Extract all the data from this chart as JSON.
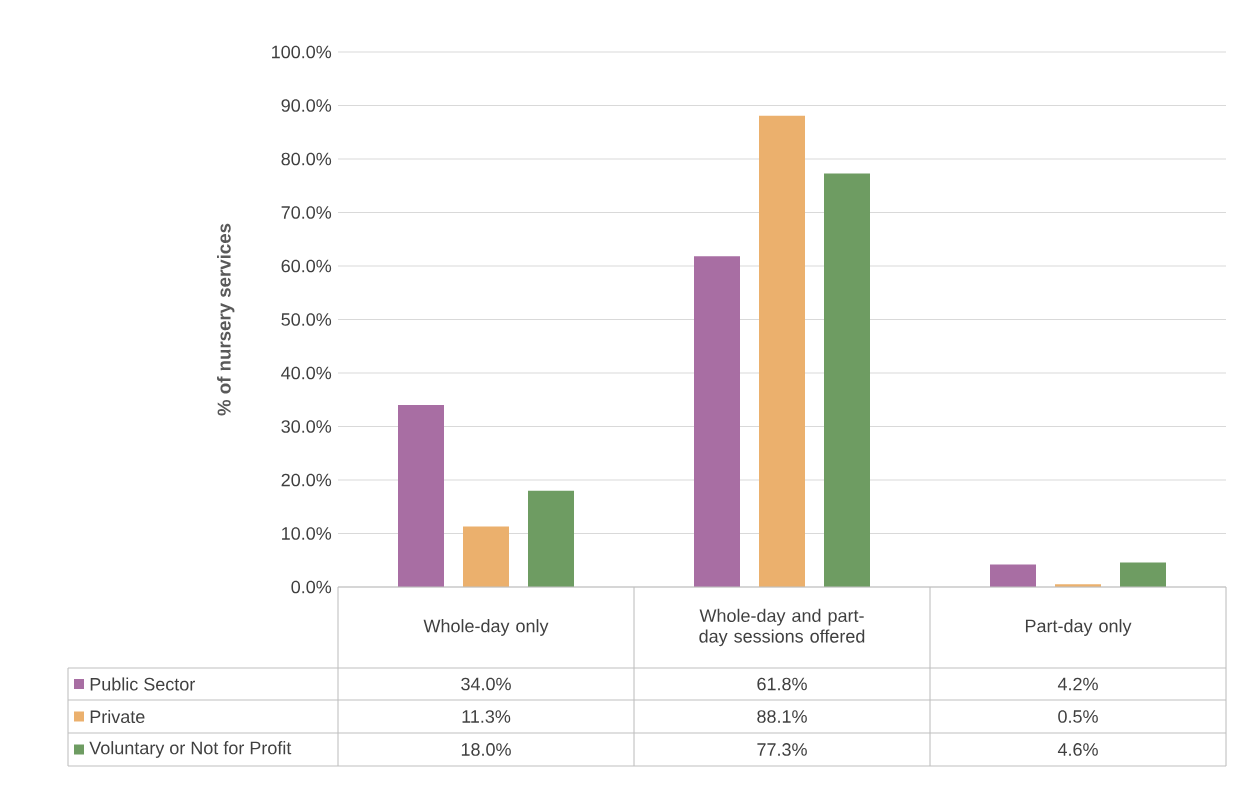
{
  "chart_data": {
    "type": "bar",
    "ylabel": "% of nursery services",
    "categories": [
      "Whole-day only",
      "Whole-day and part-day sessions offered",
      "Part-day only"
    ],
    "series": [
      {
        "name": "Public Sector",
        "color": "#a86ea3",
        "values": [
          34.0,
          61.8,
          4.2
        ],
        "value_labels": [
          "34.0%",
          "61.8%",
          "4.2%"
        ]
      },
      {
        "name": "Private",
        "color": "#ebb06d",
        "values": [
          11.3,
          88.1,
          0.5
        ],
        "value_labels": [
          "11.3%",
          "88.1%",
          "0.5%"
        ]
      },
      {
        "name": "Voluntary or Not for Profit",
        "color": "#6e9c62",
        "values": [
          18.0,
          77.3,
          4.6
        ],
        "value_labels": [
          "18.0%",
          "77.3%",
          "4.6%"
        ]
      }
    ],
    "ylim": [
      0,
      100
    ],
    "yticks": [
      {
        "value": 0,
        "label": "0.0%"
      },
      {
        "value": 10,
        "label": "10.0%"
      },
      {
        "value": 20,
        "label": "20.0%"
      },
      {
        "value": 30,
        "label": "30.0%"
      },
      {
        "value": 40,
        "label": "40.0%"
      },
      {
        "value": 50,
        "label": "50.0%"
      },
      {
        "value": 60,
        "label": "60.0%"
      },
      {
        "value": 70,
        "label": "70.0%"
      },
      {
        "value": 80,
        "label": "80.0%"
      },
      {
        "value": 90,
        "label": "90.0%"
      },
      {
        "value": 100,
        "label": "100.0%"
      }
    ],
    "grid": true,
    "legend": "bottom left"
  }
}
